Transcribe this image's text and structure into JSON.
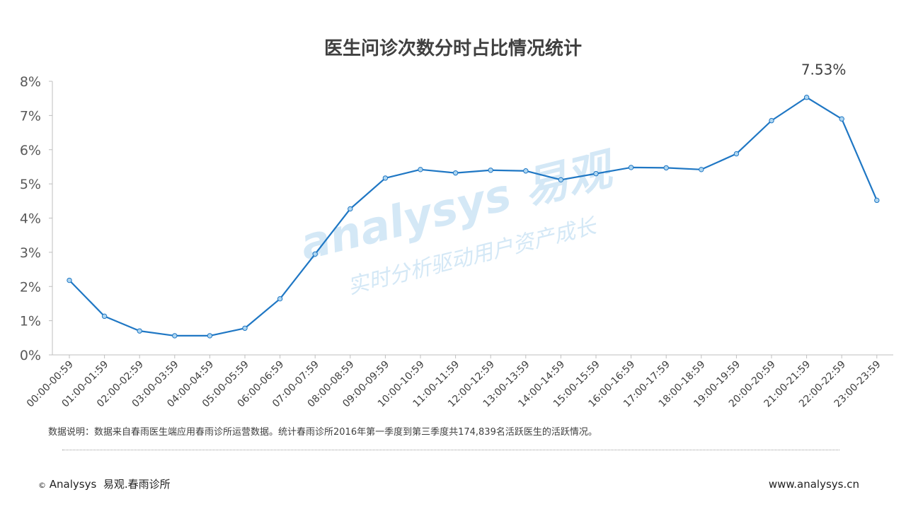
{
  "title": "医生问诊次数分时占比情况统计",
  "chart_data": {
    "type": "line",
    "categories": [
      "00:00-00:59",
      "01:00-01:59",
      "02:00-02:59",
      "03:00-03:59",
      "04:00-04:59",
      "05:00-05:59",
      "06:00-06:59",
      "07:00-07:59",
      "08:00-08:59",
      "09:00-09:59",
      "10:00-10:59",
      "11:00-11:59",
      "12:00-12:59",
      "13:00-13:59",
      "14:00-14:59",
      "15:00-15:59",
      "16:00-16:59",
      "17:00-17:59",
      "18:00-18:59",
      "19:00-19:59",
      "20:00-20:59",
      "21:00-21:59",
      "22:00-22:59",
      "23:00-23:59"
    ],
    "series": [
      {
        "values": [
          2.18,
          1.13,
          0.7,
          0.56,
          0.56,
          0.78,
          1.64,
          2.95,
          4.27,
          5.17,
          5.42,
          5.32,
          5.4,
          5.38,
          5.12,
          5.3,
          5.48,
          5.47,
          5.42,
          5.88,
          6.85,
          7.53,
          6.9,
          4.52
        ]
      }
    ],
    "ylim": [
      0,
      8
    ],
    "yticks": [
      0,
      1,
      2,
      3,
      4,
      5,
      6,
      7,
      8
    ],
    "ytick_suffix": "%",
    "annotation": {
      "index": 21,
      "text": "7.53%"
    },
    "grid": false,
    "line_color": "#1f77c4",
    "marker_fill": "#aed6f1"
  },
  "watermark": {
    "brand": "analysys 易观",
    "slogan": "实时分析驱动用户资产成长"
  },
  "note": "数据说明：数据来自春雨医生端应用春雨诊所运营数据。统计春雨诊所2016年第一季度到第三季度共174,839名活跃医生的活跃情况。",
  "footer": {
    "copyright_mark": "©",
    "left": "Analysys  易观.春雨诊所",
    "right": "www.analysys.cn"
  }
}
